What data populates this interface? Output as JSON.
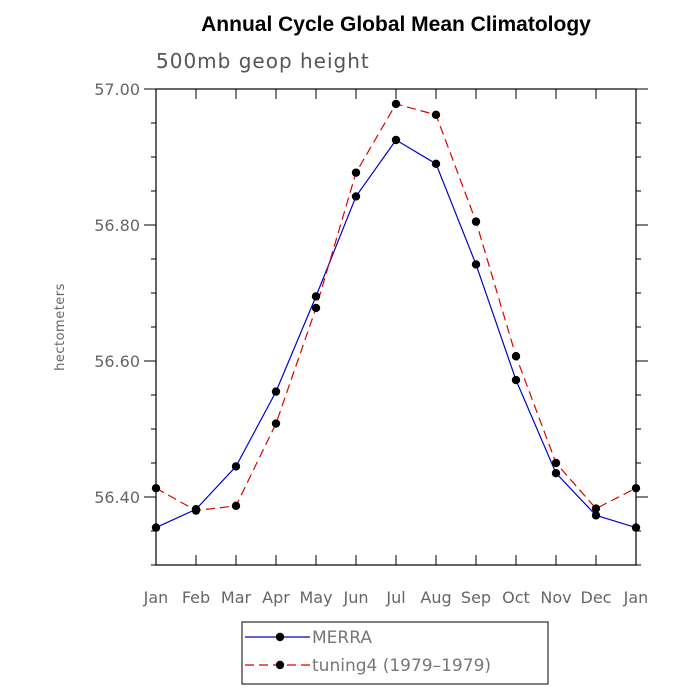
{
  "chart_data": {
    "type": "line",
    "title": "Annual Cycle Global Mean Climatology",
    "subtitle": "500mb geop height",
    "xlabel": "",
    "ylabel": "hectometers",
    "categories": [
      "Jan",
      "Feb",
      "Mar",
      "Apr",
      "May",
      "Jun",
      "Jul",
      "Aug",
      "Sep",
      "Oct",
      "Nov",
      "Dec",
      "Jan"
    ],
    "ylim": [
      56.3,
      57.0
    ],
    "yticks": [
      56.4,
      56.6,
      56.8,
      57.0
    ],
    "ytick_labels": [
      "56.40",
      "56.60",
      "56.80",
      "57.00"
    ],
    "grid": false,
    "legend_position": "bottom-center",
    "series": [
      {
        "name": "MERRA",
        "color": "#0000cc",
        "line_style": "solid",
        "marker": "filled-circle",
        "values": [
          56.355,
          56.382,
          56.445,
          56.555,
          56.695,
          56.842,
          56.925,
          56.89,
          56.742,
          56.572,
          56.435,
          56.373,
          56.355
        ]
      },
      {
        "name": "tuning4 (1979–1979)",
        "color": "#dd0000",
        "line_style": "dashed",
        "marker": "filled-circle",
        "values": [
          56.413,
          56.38,
          56.387,
          56.508,
          56.678,
          56.877,
          56.978,
          56.962,
          56.805,
          56.607,
          56.45,
          56.383,
          56.413
        ]
      }
    ]
  }
}
